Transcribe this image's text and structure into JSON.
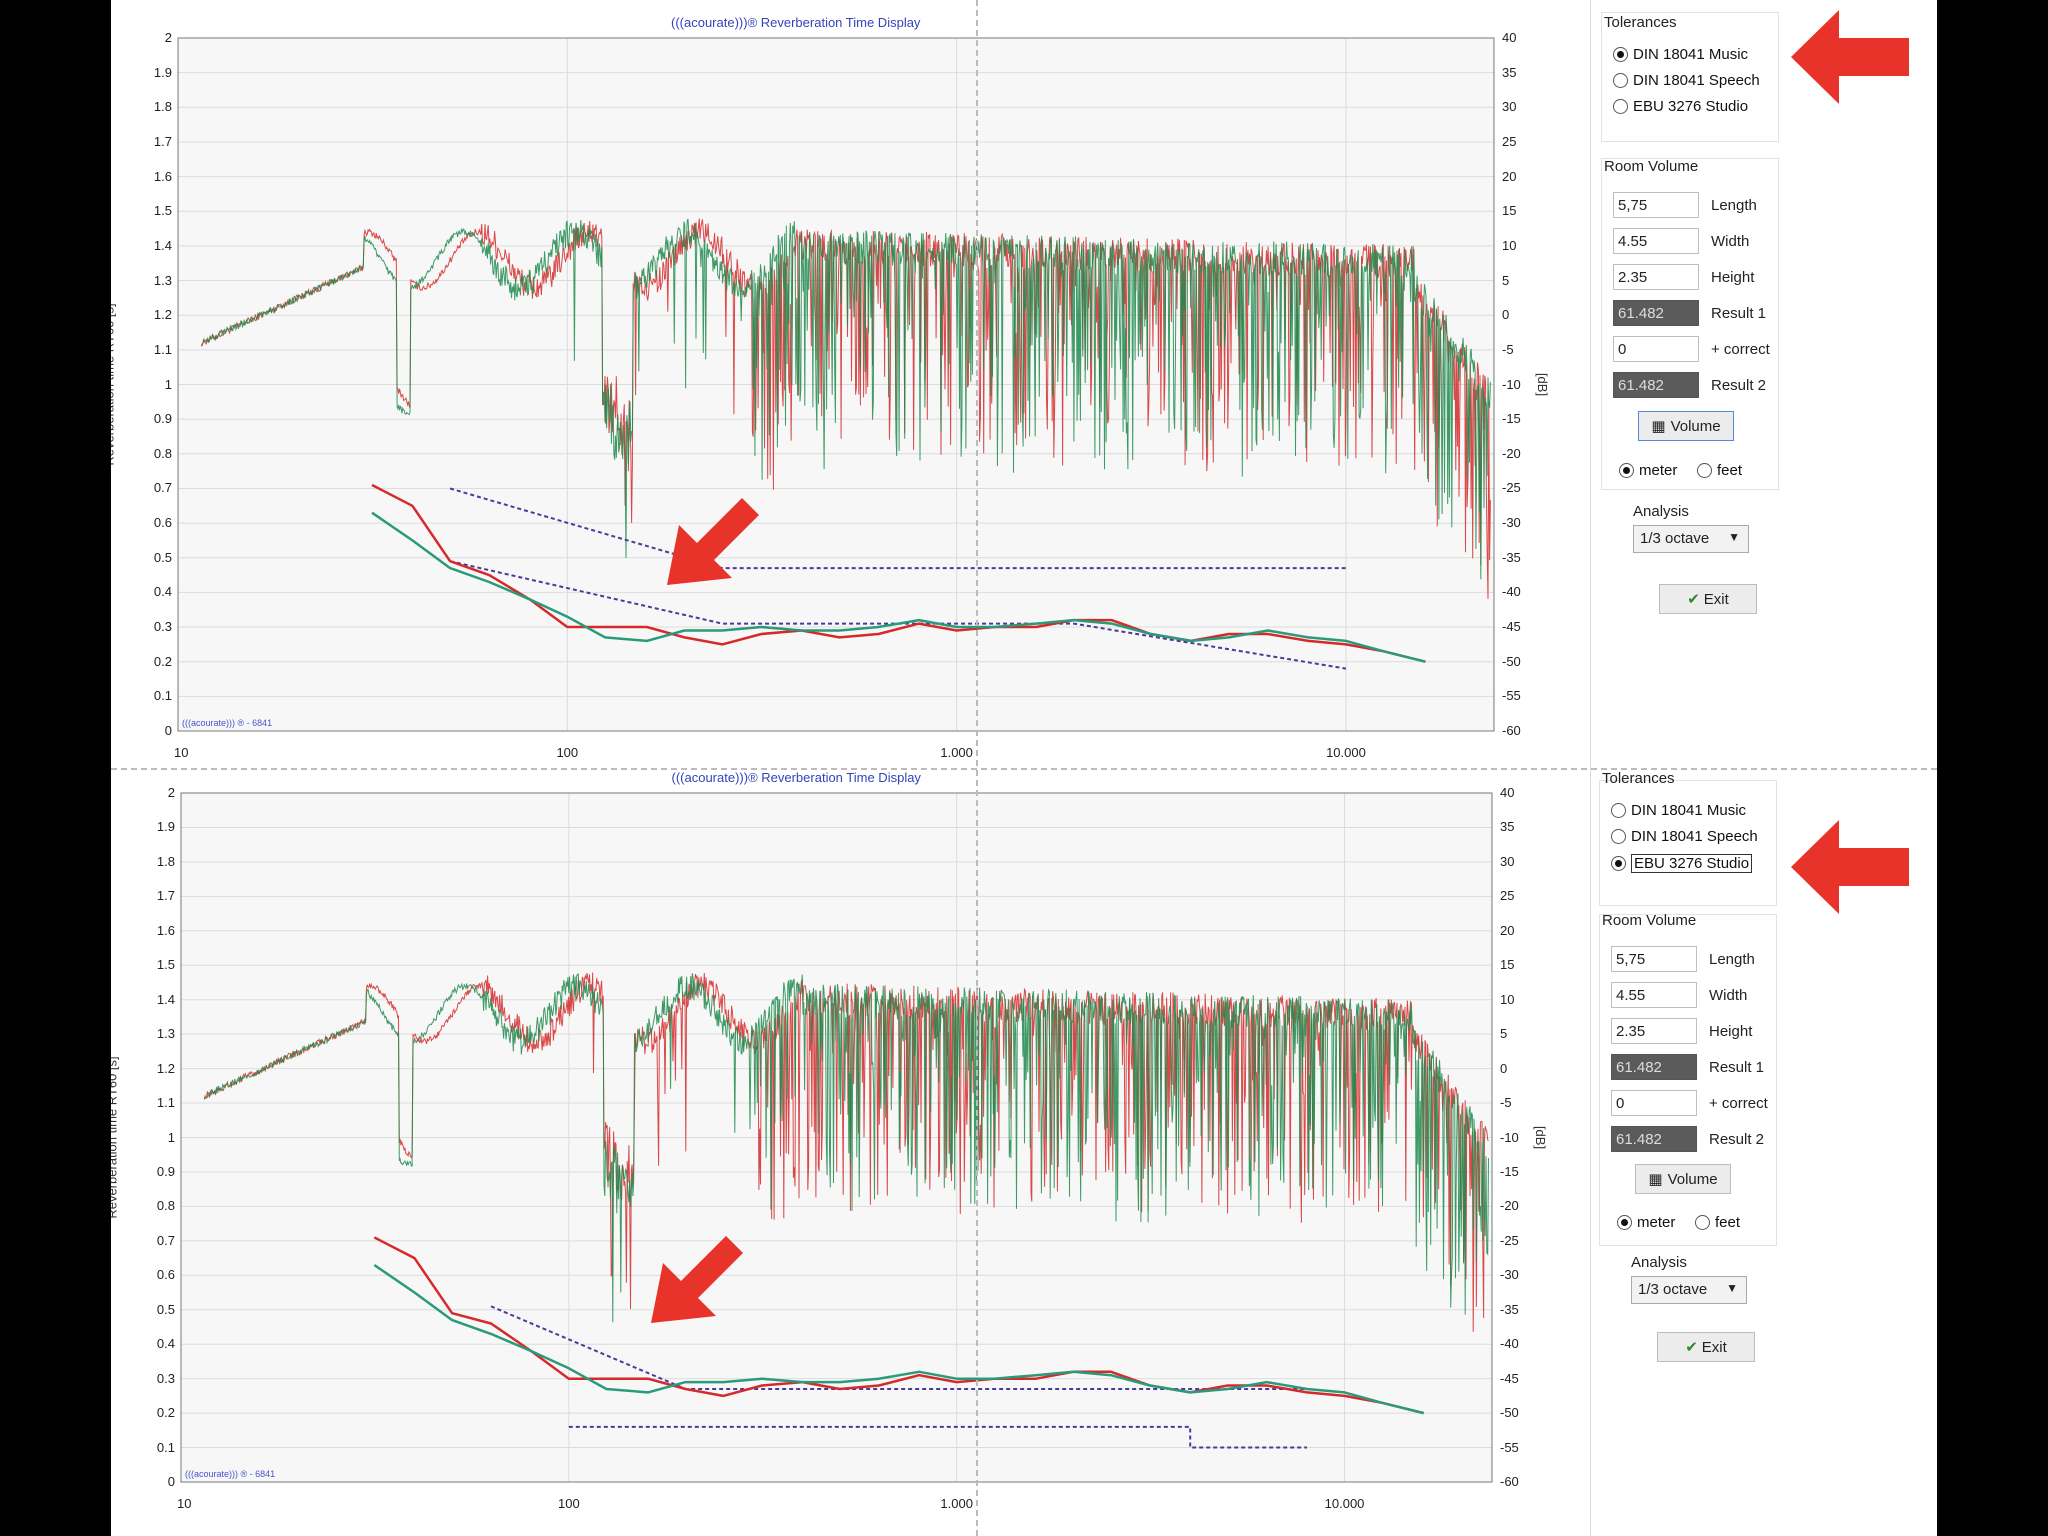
{
  "panels": [
    {
      "title": "(((acourate)))® Reverberation Time Display",
      "watermark": "(((acourate))) ® - 6841",
      "ylabel_left": "Reverberation time RT60 [s]",
      "ylabel_right": "[dB]",
      "tolerances": {
        "title": "Tolerances",
        "options": [
          "DIN 18041 Music",
          "DIN 18041 Speech",
          "EBU 3276 Studio"
        ],
        "selected": 0
      },
      "room_volume": {
        "title": "Room Volume",
        "length": "5,75",
        "length_label": "Length",
        "width": "4.55",
        "width_label": "Width",
        "height": "2.35",
        "height_label": "Height",
        "result1": "61.482",
        "result1_label": "Result 1",
        "correct": "0",
        "correct_label": "+ correct",
        "result2": "61.482",
        "result2_label": "Result 2",
        "volume_button": "Volume",
        "unit_meter": "meter",
        "unit_feet": "feet",
        "unit_selected": "meter"
      },
      "analysis": {
        "title": "Analysis",
        "value": "1/3 octave"
      },
      "exit_button": "Exit"
    },
    {
      "title": "(((acourate)))® Reverberation Time Display",
      "watermark": "(((acourate))) ® - 6841",
      "ylabel_left": "Reverberation time RT60 [s]",
      "ylabel_right": "[dB]",
      "tolerances": {
        "title": "Tolerances",
        "options": [
          "DIN 18041 Music",
          "DIN 18041 Speech",
          "EBU 3276 Studio"
        ],
        "selected": 2
      },
      "room_volume": {
        "title": "Room Volume",
        "length": "5,75",
        "length_label": "Length",
        "width": "4.55",
        "width_label": "Width",
        "height": "2.35",
        "height_label": "Height",
        "result1": "61.482",
        "result1_label": "Result 1",
        "correct": "0",
        "correct_label": "+ correct",
        "result2": "61.482",
        "result2_label": "Result 2",
        "volume_button": "Volume",
        "unit_meter": "meter",
        "unit_feet": "feet",
        "unit_selected": "meter"
      },
      "analysis": {
        "title": "Analysis",
        "value": "1/3 octave"
      },
      "exit_button": "Exit"
    }
  ],
  "colors": {
    "red": "#d42a2a",
    "green": "#1f8a4c",
    "teal": "#2a9a7a",
    "tolerance": "#4a3a9a",
    "arrow": "#e8332a"
  },
  "chart_data": [
    {
      "type": "line",
      "title": "(((acourate)))® Reverberation Time Display",
      "ylabel": "Reverberation time RT60 [s]",
      "y2label": "[dB]",
      "xscale": "log",
      "xlim": [
        10,
        24000
      ],
      "ylim": [
        0,
        2
      ],
      "y2lim": [
        -60,
        40
      ],
      "x_ticks": [
        "10",
        "100",
        "1.000",
        "10.000"
      ],
      "y_ticks": [
        "0",
        "0.1",
        "0.2",
        "0.3",
        "0.4",
        "0.5",
        "0.6",
        "0.7",
        "0.8",
        "0.9",
        "1",
        "1.1",
        "1.2",
        "1.3",
        "1.4",
        "1.5",
        "1.6",
        "1.7",
        "1.8",
        "1.9",
        "2"
      ],
      "y2_ticks": [
        "-60",
        "-55",
        "-50",
        "-45",
        "-40",
        "-35",
        "-30",
        "-25",
        "-20",
        "-15",
        "-10",
        "-5",
        "0",
        "5",
        "10",
        "15",
        "20",
        "25",
        "30",
        "35",
        "40"
      ],
      "series": [
        {
          "color": "#d42a2a",
          "x": [
            31.5,
            40,
            50,
            63,
            80,
            100,
            125,
            160,
            200,
            250,
            315,
            400,
            500,
            630,
            800,
            1000,
            1250,
            1600,
            2000,
            2500,
            3150,
            4000,
            5000,
            6300,
            8000,
            10000,
            12500,
            16000
          ],
          "y": [
            0.71,
            0.65,
            0.49,
            0.45,
            0.38,
            0.3,
            0.3,
            0.3,
            0.27,
            0.25,
            0.28,
            0.29,
            0.27,
            0.28,
            0.31,
            0.29,
            0.3,
            0.3,
            0.32,
            0.32,
            0.28,
            0.26,
            0.28,
            0.28,
            0.26,
            0.25,
            0.23,
            0.2
          ]
        },
        {
          "color": "#2a9a7a",
          "x": [
            31.5,
            40,
            50,
            63,
            80,
            100,
            125,
            160,
            200,
            250,
            315,
            400,
            500,
            630,
            800,
            1000,
            1250,
            1600,
            2000,
            2500,
            3150,
            4000,
            5000,
            6300,
            8000,
            10000,
            12500,
            16000
          ],
          "y": [
            0.63,
            0.55,
            0.47,
            0.43,
            0.38,
            0.33,
            0.27,
            0.26,
            0.29,
            0.29,
            0.3,
            0.29,
            0.29,
            0.3,
            0.32,
            0.3,
            0.3,
            0.31,
            0.32,
            0.31,
            0.28,
            0.26,
            0.27,
            0.29,
            0.27,
            0.26,
            0.23,
            0.2
          ]
        }
      ],
      "tolerance": [
        {
          "x": [
            50,
            250,
            10000
          ],
          "y": [
            0.7,
            0.47,
            0.47
          ]
        },
        {
          "x": [
            50,
            250,
            2000,
            10000
          ],
          "y": [
            0.49,
            0.31,
            0.31,
            0.18
          ]
        }
      ]
    },
    {
      "type": "line",
      "title": "(((acourate)))® Reverberation Time Display",
      "ylabel": "Reverberation time RT60 [s]",
      "y2label": "[dB]",
      "xscale": "log",
      "xlim": [
        10,
        24000
      ],
      "ylim": [
        0,
        2
      ],
      "y2lim": [
        -60,
        40
      ],
      "x_ticks": [
        "10",
        "100",
        "1.000",
        "10.000"
      ],
      "y_ticks": [
        "0",
        "0.1",
        "0.2",
        "0.3",
        "0.4",
        "0.5",
        "0.6",
        "0.7",
        "0.8",
        "0.9",
        "1",
        "1.1",
        "1.2",
        "1.3",
        "1.4",
        "1.5",
        "1.6",
        "1.7",
        "1.8",
        "1.9",
        "2"
      ],
      "y2_ticks": [
        "-60",
        "-55",
        "-50",
        "-45",
        "-40",
        "-35",
        "-30",
        "-25",
        "-20",
        "-15",
        "-10",
        "-5",
        "0",
        "5",
        "10",
        "15",
        "20",
        "25",
        "30",
        "35",
        "40"
      ],
      "series": [
        {
          "color": "#d42a2a",
          "x": [
            31.5,
            40,
            50,
            63,
            80,
            100,
            125,
            160,
            200,
            250,
            315,
            400,
            500,
            630,
            800,
            1000,
            1250,
            1600,
            2000,
            2500,
            3150,
            4000,
            5000,
            6300,
            8000,
            10000,
            12500,
            16000
          ],
          "y": [
            0.71,
            0.65,
            0.49,
            0.46,
            0.38,
            0.3,
            0.3,
            0.3,
            0.27,
            0.25,
            0.28,
            0.29,
            0.27,
            0.28,
            0.31,
            0.29,
            0.3,
            0.3,
            0.32,
            0.32,
            0.28,
            0.26,
            0.28,
            0.28,
            0.26,
            0.25,
            0.23,
            0.2
          ]
        },
        {
          "color": "#2a9a7a",
          "x": [
            31.5,
            40,
            50,
            63,
            80,
            100,
            125,
            160,
            200,
            250,
            315,
            400,
            500,
            630,
            800,
            1000,
            1250,
            1600,
            2000,
            2500,
            3150,
            4000,
            5000,
            6300,
            8000,
            10000,
            12500,
            16000
          ],
          "y": [
            0.63,
            0.55,
            0.47,
            0.43,
            0.38,
            0.33,
            0.27,
            0.26,
            0.29,
            0.29,
            0.3,
            0.29,
            0.29,
            0.3,
            0.32,
            0.3,
            0.3,
            0.31,
            0.32,
            0.31,
            0.28,
            0.26,
            0.27,
            0.29,
            0.27,
            0.26,
            0.23,
            0.2
          ]
        }
      ],
      "tolerance": [
        {
          "x": [
            63,
            200,
            8000
          ],
          "y": [
            0.51,
            0.27,
            0.27
          ]
        },
        {
          "x": [
            100,
            4000,
            4000,
            8000
          ],
          "y": [
            0.16,
            0.16,
            0.1,
            0.1
          ]
        }
      ]
    }
  ]
}
